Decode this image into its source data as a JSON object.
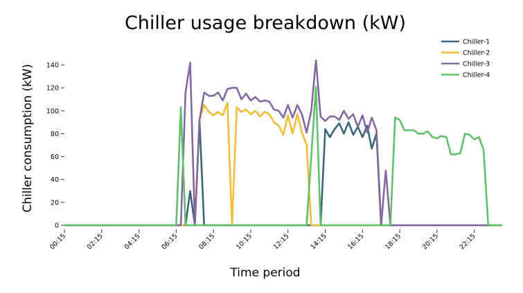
{
  "chart_data": {
    "type": "line",
    "title": "Chiller usage breakdown (kW)",
    "xlabel": "Time period",
    "ylabel": "Chiller consumption (kW)",
    "ylim": [
      0,
      140
    ],
    "yticks": [
      0,
      20,
      40,
      60,
      80,
      100,
      120,
      140
    ],
    "xlim": [
      0.25,
      23.75
    ],
    "xticks": [
      "00:15",
      "02:15",
      "04:15",
      "06:15",
      "08:15",
      "10:15",
      "12:15",
      "14:15",
      "16:15",
      "18:15",
      "20:15",
      "22:15"
    ],
    "legend_position": "top-right",
    "series": [
      {
        "name": "Chiller-1",
        "color": "#3b6478",
        "points": [
          [
            0.25,
            0
          ],
          [
            6.75,
            0
          ],
          [
            7.0,
            30
          ],
          [
            7.25,
            0
          ],
          [
            7.5,
            92
          ],
          [
            7.75,
            0
          ],
          [
            14.0,
            0
          ],
          [
            14.25,
            84
          ],
          [
            14.5,
            77
          ],
          [
            14.75,
            84
          ],
          [
            15.0,
            89
          ],
          [
            15.25,
            80
          ],
          [
            15.5,
            90
          ],
          [
            15.75,
            79
          ],
          [
            16.0,
            86
          ],
          [
            16.25,
            77
          ],
          [
            16.5,
            87
          ],
          [
            16.75,
            67
          ],
          [
            17.0,
            80
          ],
          [
            17.25,
            0
          ],
          [
            23.75,
            0
          ]
        ]
      },
      {
        "name": "Chiller-2",
        "color": "#f2bc38",
        "points": [
          [
            0.25,
            0
          ],
          [
            7.25,
            0
          ],
          [
            7.5,
            92
          ],
          [
            7.75,
            105
          ],
          [
            8.0,
            99
          ],
          [
            8.25,
            96
          ],
          [
            8.5,
            99
          ],
          [
            8.75,
            96
          ],
          [
            9.0,
            107
          ],
          [
            9.25,
            0
          ],
          [
            9.5,
            103
          ],
          [
            9.75,
            99
          ],
          [
            10.0,
            101
          ],
          [
            10.25,
            97
          ],
          [
            10.5,
            100
          ],
          [
            10.75,
            95
          ],
          [
            11.0,
            99
          ],
          [
            11.25,
            97
          ],
          [
            11.5,
            90
          ],
          [
            11.75,
            87
          ],
          [
            12.0,
            79
          ],
          [
            12.25,
            96
          ],
          [
            12.5,
            80
          ],
          [
            12.75,
            97
          ],
          [
            13.0,
            81
          ],
          [
            13.25,
            70
          ],
          [
            13.5,
            0
          ],
          [
            14.0,
            0
          ],
          [
            23.75,
            0
          ]
        ]
      },
      {
        "name": "Chiller-3",
        "color": "#8368a0",
        "points": [
          [
            0.25,
            0
          ],
          [
            6.5,
            0
          ],
          [
            6.75,
            116
          ],
          [
            7.0,
            142
          ],
          [
            7.25,
            0
          ],
          [
            7.5,
            92
          ],
          [
            7.75,
            116
          ],
          [
            8.0,
            113
          ],
          [
            8.25,
            113
          ],
          [
            8.5,
            116
          ],
          [
            8.75,
            109
          ],
          [
            9.0,
            119
          ],
          [
            9.25,
            120
          ],
          [
            9.5,
            120
          ],
          [
            9.75,
            110
          ],
          [
            10.0,
            115
          ],
          [
            10.25,
            109
          ],
          [
            10.5,
            112
          ],
          [
            10.75,
            108
          ],
          [
            11.0,
            109
          ],
          [
            11.25,
            108
          ],
          [
            11.5,
            101
          ],
          [
            11.75,
            100
          ],
          [
            12.0,
            94
          ],
          [
            12.25,
            105
          ],
          [
            12.5,
            94
          ],
          [
            12.75,
            105
          ],
          [
            13.0,
            97
          ],
          [
            13.25,
            81
          ],
          [
            13.5,
            100
          ],
          [
            13.75,
            144
          ],
          [
            14.0,
            95
          ],
          [
            14.25,
            91
          ],
          [
            14.5,
            95
          ],
          [
            14.75,
            95
          ],
          [
            15.0,
            92
          ],
          [
            15.25,
            100
          ],
          [
            15.5,
            93
          ],
          [
            15.75,
            97
          ],
          [
            16.0,
            86
          ],
          [
            16.25,
            96
          ],
          [
            16.5,
            81
          ],
          [
            16.75,
            94
          ],
          [
            17.0,
            83
          ],
          [
            17.25,
            0
          ],
          [
            17.5,
            48
          ],
          [
            17.75,
            0
          ],
          [
            23.75,
            0
          ]
        ]
      },
      {
        "name": "Chiller-4",
        "color": "#5fbf6a",
        "points": [
          [
            0.25,
            0
          ],
          [
            6.25,
            0
          ],
          [
            6.5,
            103
          ],
          [
            6.75,
            0
          ],
          [
            13.25,
            0
          ],
          [
            13.75,
            121
          ],
          [
            14.0,
            0
          ],
          [
            17.75,
            0
          ],
          [
            18.0,
            94
          ],
          [
            18.25,
            92
          ],
          [
            18.5,
            83
          ],
          [
            18.75,
            83
          ],
          [
            19.0,
            83
          ],
          [
            19.25,
            80
          ],
          [
            19.5,
            80
          ],
          [
            19.75,
            82
          ],
          [
            20.0,
            77
          ],
          [
            20.25,
            76
          ],
          [
            20.5,
            78
          ],
          [
            20.75,
            77
          ],
          [
            21.0,
            62
          ],
          [
            21.25,
            62
          ],
          [
            21.5,
            63
          ],
          [
            21.75,
            80
          ],
          [
            22.0,
            79
          ],
          [
            22.25,
            75
          ],
          [
            22.5,
            77
          ],
          [
            22.75,
            66
          ],
          [
            23.0,
            0
          ],
          [
            23.75,
            0
          ]
        ]
      }
    ]
  }
}
